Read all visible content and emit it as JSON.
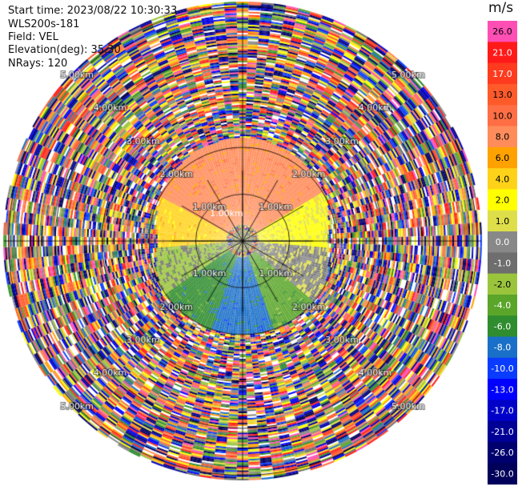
{
  "header": {
    "start_time": "Start time: 2023/08/22 10:30:33",
    "instrument": "WLS200s-181",
    "field": "Field: VEL",
    "elevation": "Elevation(deg): 35.30",
    "nrays": "NRays: 120"
  },
  "colorbar": {
    "unit": "m/s",
    "ticks": [
      "26.0",
      "21.0",
      "17.0",
      "13.0",
      "10.0",
      "8.0",
      "6.0",
      "4.0",
      "2.0",
      "1.0",
      "0.0",
      "-1.0",
      "-2.0",
      "-4.0",
      "-6.0",
      "-8.0",
      "-10.0",
      "-13.0",
      "-17.0",
      "-21.0",
      "-26.0",
      "-30.0"
    ],
    "colors": [
      "#ff4fb4",
      "#ff1a1a",
      "#ff3b1f",
      "#ff5a2a",
      "#ff6e45",
      "#ff8c5a",
      "#ffa200",
      "#ffd21a",
      "#ffff00",
      "#dede4a",
      "#888888",
      "#6e6e6e",
      "#9bc43d",
      "#5aa52a",
      "#2f8c2f",
      "#1a6fc8",
      "#0a3cff",
      "#0000ff",
      "#0000c8",
      "#000096",
      "#00006e",
      "#00005a"
    ]
  },
  "chart_data": {
    "type": "ppi",
    "title": "",
    "field": "VEL",
    "unit": "m/s",
    "elevation_deg": 35.3,
    "n_rays": 120,
    "range_rings_km": [
      1.0,
      2.0,
      3.0,
      4.0,
      5.0
    ],
    "range_ring_labels": [
      "1.00km",
      "2.00km",
      "3.00km",
      "4.00km",
      "5.00km"
    ],
    "coherent_data_max_range_km": 2.2,
    "velocity_structure": [
      {
        "azimuth_from": 300,
        "azimuth_to": 60,
        "range_km": [
          0.3,
          2.2
        ],
        "velocity_ms": 8.0
      },
      {
        "azimuth_from": 60,
        "azimuth_to": 95,
        "range_km": [
          0.3,
          2.0
        ],
        "velocity_ms": 2.0
      },
      {
        "azimuth_from": 265,
        "azimuth_to": 300,
        "range_km": [
          0.3,
          2.0
        ],
        "velocity_ms": 4.0
      },
      {
        "azimuth_from": 95,
        "azimuth_to": 130,
        "range_km": [
          0.3,
          2.0
        ],
        "velocity_ms": 0.0
      },
      {
        "azimuth_from": 130,
        "azimuth_to": 160,
        "range_km": [
          0.3,
          2.0
        ],
        "velocity_ms": -4.0
      },
      {
        "azimuth_from": 160,
        "azimuth_to": 200,
        "range_km": [
          0.3,
          2.0
        ],
        "velocity_ms": -8.0
      },
      {
        "azimuth_from": 200,
        "azimuth_to": 235,
        "range_km": [
          0.3,
          2.0
        ],
        "velocity_ms": -6.0
      },
      {
        "azimuth_from": 235,
        "azimuth_to": 265,
        "range_km": [
          0.3,
          2.0
        ],
        "velocity_ms": -2.0
      }
    ],
    "outer_region": "noise (random velocities)",
    "colorbar_limits": [
      -30.0,
      26.0
    ],
    "grid": true
  }
}
